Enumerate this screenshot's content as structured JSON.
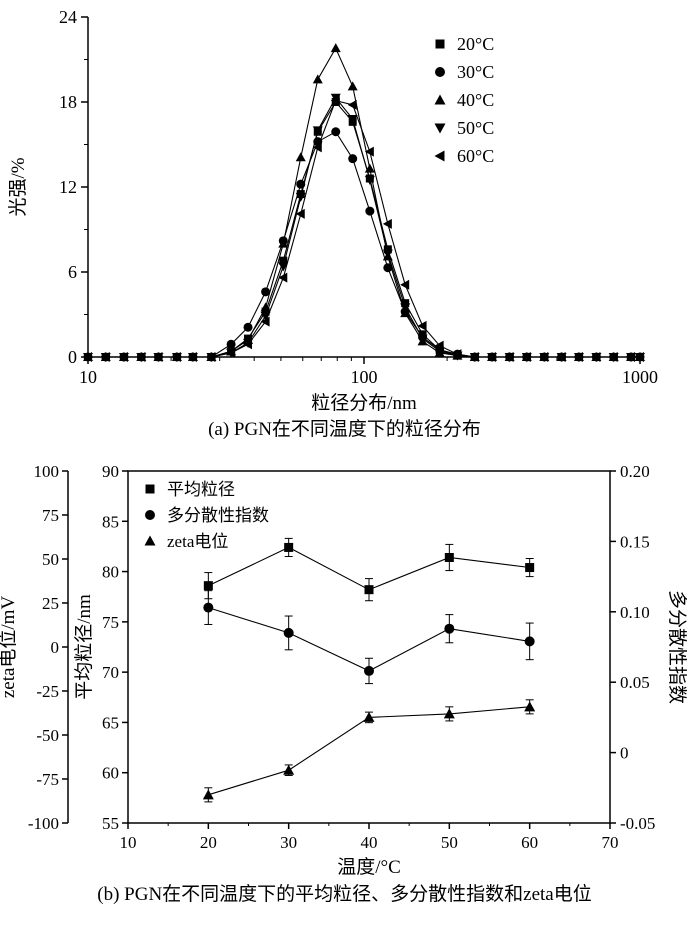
{
  "page": {
    "background": "#ffffff",
    "foreground": "#000000"
  },
  "chart_data": [
    {
      "id": "a",
      "type": "line",
      "caption": "(a) PGN在不同温度下的粒径分布",
      "xlabel": "粒径分布/nm",
      "ylabel": "光强/%",
      "x_scale": "log",
      "xlim": [
        10,
        1000
      ],
      "ylim": [
        0,
        24
      ],
      "xticks": [
        10,
        100,
        1000
      ],
      "yticks": [
        0,
        6,
        12,
        18,
        24
      ],
      "legend_position": "top-right",
      "marker_color": "#000000",
      "x": [
        10,
        11.6,
        13.5,
        15.6,
        18,
        21,
        24,
        28,
        33,
        38,
        44,
        51,
        59,
        68,
        79,
        91,
        105,
        122,
        141,
        163,
        188,
        218,
        252,
        291,
        337,
        389,
        450,
        520,
        601,
        695,
        803,
        928,
        1000
      ],
      "series": [
        {
          "name": "20°C",
          "marker": "square",
          "values": [
            0,
            0,
            0,
            0,
            0,
            0,
            0,
            0,
            0.4,
            1.3,
            3.2,
            6.8,
            11.5,
            15.9,
            18.0,
            16.6,
            12.6,
            7.6,
            3.8,
            1.6,
            0.5,
            0.1,
            0,
            0,
            0,
            0,
            0,
            0,
            0,
            0,
            0,
            0,
            0
          ]
        },
        {
          "name": "30°C",
          "marker": "circle",
          "values": [
            0,
            0,
            0,
            0,
            0,
            0,
            0,
            0,
            0.9,
            2.1,
            4.6,
            8.2,
            12.2,
            15.2,
            15.9,
            14.0,
            10.3,
            6.3,
            3.2,
            1.4,
            0.5,
            0.2,
            0,
            0,
            0,
            0,
            0,
            0,
            0,
            0,
            0,
            0,
            0
          ]
        },
        {
          "name": "40°C",
          "marker": "triangle-up",
          "values": [
            0,
            0,
            0,
            0,
            0,
            0,
            0,
            0,
            0.4,
            1.2,
            3.5,
            8.0,
            14.1,
            19.6,
            21.8,
            19.1,
            13.3,
            7.1,
            3.1,
            1.1,
            0.3,
            0.1,
            0,
            0,
            0,
            0,
            0,
            0,
            0,
            0,
            0,
            0,
            0
          ]
        },
        {
          "name": "50°C",
          "marker": "triangle-down",
          "values": [
            0,
            0,
            0,
            0,
            0,
            0,
            0,
            0,
            0.3,
            1.0,
            2.9,
            6.4,
            11.3,
            16.0,
            18.3,
            16.8,
            12.5,
            7.3,
            3.5,
            1.3,
            0.4,
            0.1,
            0,
            0,
            0,
            0,
            0,
            0,
            0,
            0,
            0,
            0,
            0
          ]
        },
        {
          "name": "60°C",
          "marker": "triangle-left",
          "values": [
            0,
            0,
            0,
            0,
            0,
            0,
            0,
            0,
            0.3,
            0.9,
            2.5,
            5.6,
            10.1,
            14.8,
            18.1,
            17.8,
            14.5,
            9.4,
            5.1,
            2.2,
            0.8,
            0.2,
            0,
            0,
            0,
            0,
            0,
            0,
            0,
            0,
            0,
            0,
            0
          ]
        }
      ]
    },
    {
      "id": "b",
      "type": "line",
      "caption": "(b) PGN在不同温度下的平均粒径、多分散性指数和zeta电位",
      "xlabel": "温度/°C",
      "xlim": [
        10,
        70
      ],
      "xticks": [
        10,
        20,
        30,
        40,
        50,
        60,
        70
      ],
      "legend_position": "top-left",
      "axes": {
        "size": {
          "label": "平均粒径/nm",
          "lim": [
            55,
            90
          ],
          "ticks": [
            55,
            60,
            65,
            70,
            75,
            80,
            85,
            90
          ],
          "side": "left-inner"
        },
        "zeta": {
          "label": "zeta电位/mV",
          "lim": [
            -100,
            100
          ],
          "ticks": [
            -100,
            -75,
            -50,
            -25,
            0,
            25,
            50,
            75,
            100
          ],
          "side": "left-outer"
        },
        "pdi": {
          "label": "多分散性指数",
          "lim": [
            -0.05,
            0.2
          ],
          "ticks": [
            -0.05,
            0,
            0.05,
            0.1,
            0.15,
            0.2
          ],
          "tick_labels": [
            "-0.05",
            "0",
            "0.05",
            "0.10",
            "0.15",
            "0.20"
          ],
          "side": "right"
        }
      },
      "temperatures": [
        20,
        30,
        40,
        50,
        60
      ],
      "series": [
        {
          "name": "平均粒径",
          "marker": "square",
          "axis": "size",
          "values": [
            78.6,
            82.4,
            78.2,
            81.4,
            80.4
          ],
          "errors": [
            1.3,
            0.9,
            1.1,
            1.3,
            0.9
          ]
        },
        {
          "name": "多分散性指数",
          "marker": "circle",
          "axis": "pdi",
          "values": [
            0.103,
            0.085,
            0.058,
            0.088,
            0.079
          ],
          "errors": [
            0.012,
            0.012,
            0.009,
            0.01,
            0.013
          ]
        },
        {
          "name": "zeta电位",
          "marker": "triangle-up",
          "axis": "zeta",
          "values": [
            -84,
            -70,
            -40,
            -38,
            -34
          ],
          "errors": [
            4,
            3,
            3,
            4,
            4
          ]
        }
      ]
    }
  ]
}
